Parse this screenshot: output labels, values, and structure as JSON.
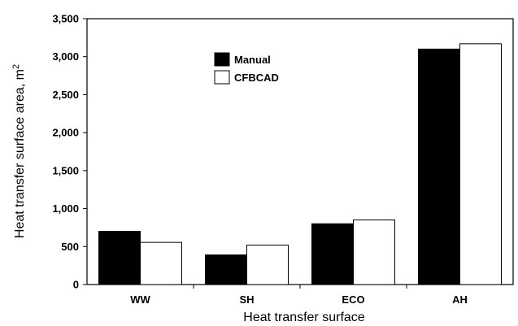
{
  "chart_data": {
    "type": "bar",
    "title": "",
    "xlabel": "Heat transfer surface",
    "ylabel_text": "Heat transfer surface area, m",
    "ylabel_sup": "2",
    "categories": [
      "WW",
      "SH",
      "ECO",
      "AH"
    ],
    "series": [
      {
        "name": "Manual",
        "values": [
          700,
          390,
          800,
          3100
        ],
        "color": "#000000"
      },
      {
        "name": "CFBCAD",
        "values": [
          555,
          520,
          850,
          3170
        ],
        "color": "#ffffff"
      }
    ],
    "ylim": [
      0,
      3500
    ],
    "yticks": [
      0,
      500,
      1000,
      1500,
      2000,
      2500,
      3000,
      3500
    ],
    "ytick_labels": [
      "0",
      "500",
      "1,000",
      "1,500",
      "2,000",
      "2,500",
      "3,000",
      "3,500"
    ],
    "grid": false,
    "legend_position": "top-center"
  }
}
